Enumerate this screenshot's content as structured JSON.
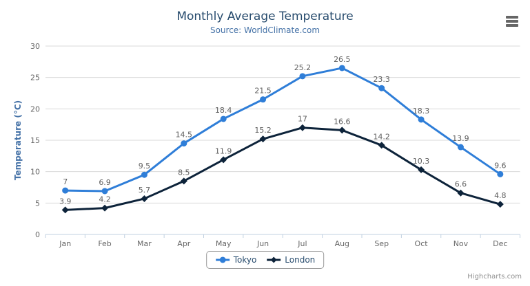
{
  "credits": {
    "label": "Highcharts.com"
  },
  "style": {
    "background": "#ffffff",
    "title_color": "#274b6d",
    "subtitle_color": "#4572a7",
    "axis_title_color": "#4572a7",
    "tick_label_color": "#666666",
    "data_label_color": "#606060",
    "grid_color": "#d8d8d8",
    "axis_line_color": "#c0d0e0",
    "legend_text_color": "#274b6d",
    "legend_border_color": "#999999",
    "credits_color": "#909090",
    "menu_icon_color": "#666666"
  },
  "chart_data": {
    "type": "line",
    "title": "Monthly Average Temperature",
    "subtitle": "Source: WorldClimate.com",
    "categories": [
      "Jan",
      "Feb",
      "Mar",
      "Apr",
      "May",
      "Jun",
      "Jul",
      "Aug",
      "Sep",
      "Oct",
      "Nov",
      "Dec"
    ],
    "xlabel": "",
    "ylabel": "Temperature (°C)",
    "ylim": [
      0,
      30
    ],
    "ytick_interval": 5,
    "yticks": [
      0,
      5,
      10,
      15,
      20,
      25,
      30
    ],
    "grid": true,
    "legend_position": "bottom-center",
    "data_labels_enabled": true,
    "series": [
      {
        "name": "Tokyo",
        "color": "#2f7ed8",
        "marker": "circle",
        "values": [
          7.0,
          6.9,
          9.5,
          14.5,
          18.4,
          21.5,
          25.2,
          26.5,
          23.3,
          18.3,
          13.9,
          9.6
        ]
      },
      {
        "name": "London",
        "color": "#0d233a",
        "marker": "diamond",
        "values": [
          3.9,
          4.2,
          5.7,
          8.5,
          11.9,
          15.2,
          17.0,
          16.6,
          14.2,
          10.3,
          6.6,
          4.8
        ]
      }
    ]
  }
}
